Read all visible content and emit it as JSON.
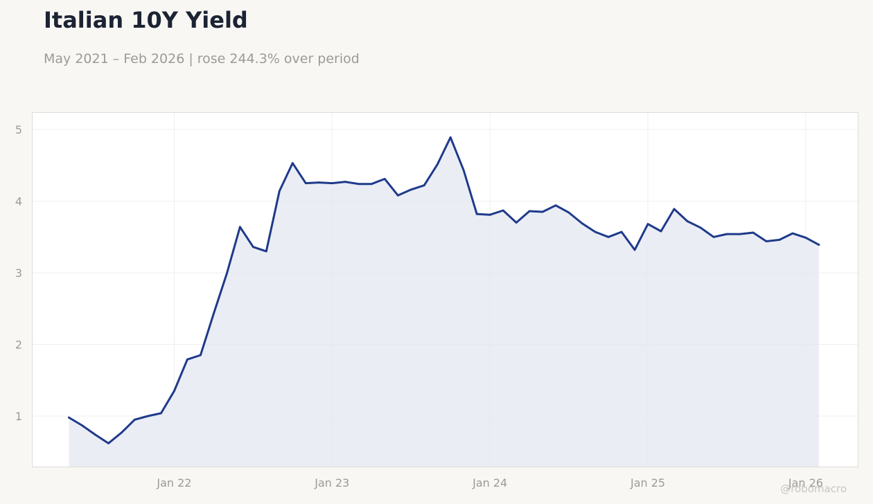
{
  "chart_data": {
    "type": "area",
    "title": "Italian 10Y Yield",
    "subtitle": "May 2021 – Feb 2026 | rose 244.3% over period",
    "xlabel": "",
    "ylabel": "",
    "x": [
      "2021-05",
      "2021-06",
      "2021-07",
      "2021-08",
      "2021-09",
      "2021-10",
      "2021-11",
      "2021-12",
      "2022-01",
      "2022-02",
      "2022-03",
      "2022-04",
      "2022-05",
      "2022-06",
      "2022-07",
      "2022-08",
      "2022-09",
      "2022-10",
      "2022-11",
      "2022-12",
      "2023-01",
      "2023-02",
      "2023-03",
      "2023-04",
      "2023-05",
      "2023-06",
      "2023-07",
      "2023-08",
      "2023-09",
      "2023-10",
      "2023-11",
      "2023-12",
      "2024-01",
      "2024-02",
      "2024-03",
      "2024-04",
      "2024-05",
      "2024-06",
      "2024-07",
      "2024-08",
      "2024-09",
      "2024-10",
      "2024-11",
      "2024-12",
      "2025-01",
      "2025-02",
      "2025-03",
      "2025-04",
      "2025-05",
      "2025-06",
      "2025-07",
      "2025-08",
      "2025-09",
      "2025-10",
      "2025-11",
      "2025-12",
      "2026-01",
      "2026-02"
    ],
    "series": [
      {
        "values": [
          0.98,
          0.87,
          0.74,
          0.62,
          0.77,
          0.95,
          1.0,
          1.04,
          1.35,
          1.79,
          1.85,
          2.43,
          2.99,
          3.64,
          3.36,
          3.3,
          4.14,
          4.53,
          4.25,
          4.26,
          4.25,
          4.27,
          4.24,
          4.24,
          4.31,
          4.08,
          4.16,
          4.22,
          4.51,
          4.89,
          4.43,
          3.82,
          3.81,
          3.87,
          3.7,
          3.86,
          3.85,
          3.94,
          3.84,
          3.69,
          3.57,
          3.5,
          3.57,
          3.32,
          3.68,
          3.58,
          3.89,
          3.72,
          3.63,
          3.5,
          3.54,
          3.54,
          3.56,
          3.44,
          3.46,
          3.55,
          3.49,
          3.39
        ]
      }
    ],
    "xticks": [
      "Jan 22",
      "Jan 23",
      "Jan 24",
      "Jan 25",
      "Jan 26"
    ],
    "yticks": [
      1,
      2,
      3,
      4,
      5
    ],
    "ylim": [
      0.28,
      5.23
    ],
    "grid": true,
    "colors": {
      "line": "#1e3a8a",
      "fill": "#e4e7f1",
      "background": "#f8f7f4",
      "plot_background": "#ffffff",
      "grid": "#efefed",
      "axis_text": "#9a9a96",
      "title": "#1c2333"
    },
    "watermark": "@robomacro"
  }
}
